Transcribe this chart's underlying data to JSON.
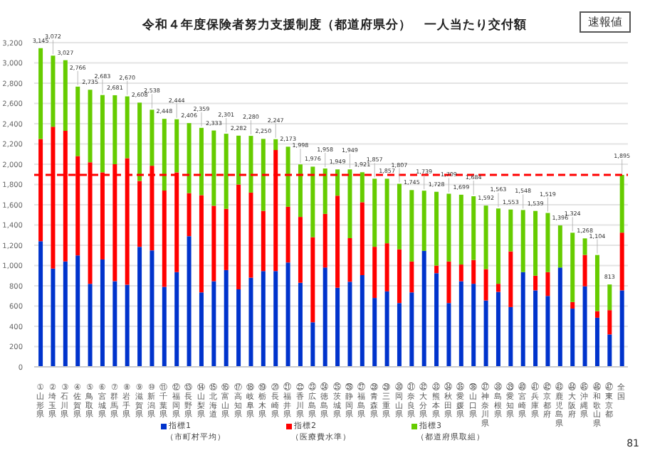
{
  "chart_data": {
    "type": "bar",
    "stacked": true,
    "title": "令和４年度保険者努力支援制度（都道府県分）　一人当たり交付額",
    "categories": [
      "①山形県",
      "②埼玉県",
      "③石川県",
      "④佐賀県",
      "⑤鳥取県",
      "⑥宮城県",
      "⑦群馬県",
      "⑧岩手県",
      "⑨滋賀県",
      "⑩新潟県",
      "⑪千葉県",
      "⑫福岡県",
      "⑬長野県",
      "⑭山梨県",
      "⑮北海道",
      "⑯富山県",
      "⑰高知県",
      "⑱岐阜県",
      "⑲栃木県",
      "⑳長崎県",
      "㉑福井県",
      "㉒香川県",
      "㉓広島県",
      "㉔徳島県",
      "㉕茨城県",
      "㉖静岡県",
      "㉗福島県",
      "㉘青森県",
      "㉙三重県",
      "㉚岡山県",
      "㉛奈良県",
      "㉜大分県",
      "㉝熊本県",
      "㉞秋田県",
      "㉟愛媛県",
      "㊱山口県",
      "㊲神奈川県",
      "㊳島根県",
      "㊴愛知県",
      "㊵宮崎県",
      "㊶兵庫県",
      "㊷京都府",
      "㊸鹿児島県",
      "㊹大阪府",
      "㊺沖縄県",
      "㊻和歌山県",
      "㊼東京都",
      "全国"
    ],
    "series": [
      {
        "name": "指標1（市町村平均）",
        "color": "#0033cc",
        "values": [
          1240,
          970,
          1040,
          1100,
          820,
          1060,
          845,
          810,
          1185,
          1150,
          790,
          935,
          1290,
          735,
          845,
          955,
          765,
          880,
          945,
          945,
          1030,
          830,
          440,
          980,
          780,
          840,
          905,
          680,
          745,
          630,
          735,
          1145,
          925,
          630,
          845,
          820,
          655,
          740,
          590,
          935,
          755,
          700,
          980,
          575,
          795,
          485,
          320,
          755
        ]
      },
      {
        "name": "指標2（医療費水準）",
        "color": "#ff0000",
        "values": [
          1010,
          1400,
          1290,
          980,
          1200,
          860,
          1155,
          1250,
          650,
          835,
          950,
          985,
          425,
          960,
          745,
          605,
          1035,
          840,
          595,
          1195,
          550,
          650,
          840,
          530,
          910,
          430,
          720,
          505,
          475,
          530,
          305,
          0,
          75,
          410,
          165,
          235,
          310,
          80,
          550,
          0,
          145,
          235,
          0,
          65,
          310,
          65,
          240,
          570
        ]
      },
      {
        "name": "指標3（都道府県取組）",
        "color": "#66cc00",
        "values": [
          895,
          702,
          697,
          686,
          715,
          763,
          681,
          610,
          773,
          553,
          708,
          524,
          691,
          664,
          743,
          741,
          482,
          560,
          710,
          107,
          593,
          518,
          696,
          448,
          259,
          679,
          296,
          672,
          637,
          647,
          705,
          594,
          728,
          669,
          689,
          629,
          627,
          743,
          413,
          613,
          639,
          584,
          416,
          684,
          163,
          554,
          253,
          570
        ]
      }
    ],
    "totals": [
      "3,145",
      "3,072",
      "3,027",
      "2,766",
      "2,735",
      "2,683",
      "2,681",
      "2,670",
      "2,608",
      "2,538",
      "2,448",
      "2,444",
      "2,406",
      "2,359",
      "2,333",
      "2,301",
      "2,282",
      "2,280",
      "2,250",
      "2,247",
      "2,173",
      "1,998",
      "1,976",
      "1,958",
      "1,949",
      "1,949",
      "1,921",
      "1,857",
      "1,857",
      "1,807",
      "1,745",
      "1,739",
      "1,728",
      "1,709",
      "1,699",
      "1,684",
      "1,592",
      "1,563",
      "1,553",
      "1,548",
      "1,539",
      "1,519",
      "1,396",
      "1,324",
      "1,268",
      "1,104",
      "813",
      "1,895"
    ],
    "ylim": [
      0,
      3200
    ],
    "yticks": [
      0,
      200,
      400,
      600,
      800,
      {
        "value": 1000,
        "label": "1,000"
      },
      {
        "value": 1200,
        "label": "1,200"
      },
      {
        "value": 1400,
        "label": "1,400"
      },
      {
        "value": 1600,
        "label": "1,600"
      },
      {
        "value": 1800,
        "label": "1,800"
      },
      {
        "value": 2000,
        "label": "2,000"
      },
      {
        "value": 2200,
        "label": "2,200"
      },
      {
        "value": 2400,
        "label": "2,400"
      },
      {
        "value": 2600,
        "label": "2,600"
      },
      {
        "value": 2800,
        "label": "2,800"
      },
      {
        "value": 3000,
        "label": "3,000"
      },
      {
        "value": 3200,
        "label": "3,200"
      }
    ],
    "ref_lines": [
      {
        "axis": "y",
        "value": 1895,
        "color": "#ff0000",
        "line_style": "dashed"
      }
    ],
    "grid": "y",
    "legend": "bottom",
    "annotations": [
      "速報値",
      "81"
    ]
  }
}
